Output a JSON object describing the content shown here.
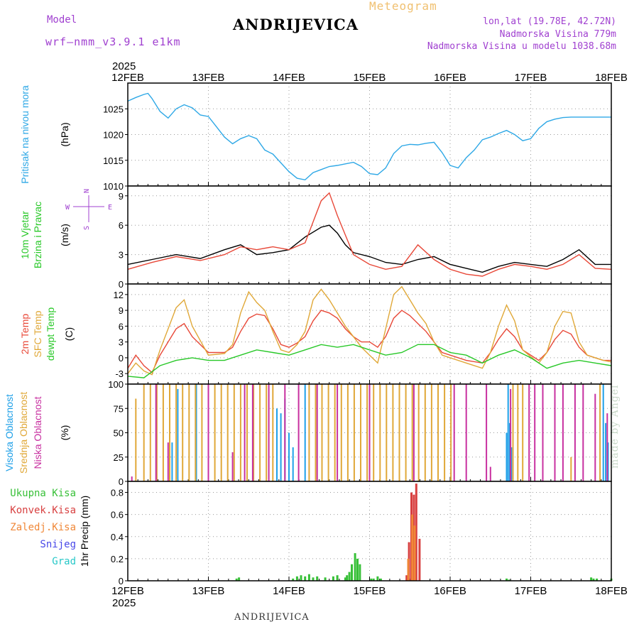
{
  "header": {
    "model_label": "Model",
    "model_version": "wrf–nmm_v3.9.1  e1km",
    "station": "ANDRIJEVICA",
    "meteogram": "Meteogram",
    "lonlat": "lon,lat (19.78E, 42.72N)",
    "elevation": "Nadmorska Visina 779m",
    "model_elevation": "Nadmorska Visina u modelu 1038.68m"
  },
  "footer": {
    "station": "ANDRIJEVICA",
    "watermark": "made by Angel"
  },
  "time_axis": {
    "year": "2025",
    "ticks": [
      "12FEB",
      "13FEB",
      "14FEB",
      "15FEB",
      "16FEB",
      "17FEB",
      "18FEB"
    ]
  },
  "colors": {
    "pressure": "#2ea8e6",
    "temp_2m": "#e84838",
    "temp_sfc": "#e0a838",
    "dewpoint": "#28c828",
    "cloud_high": "#1ea0e8",
    "cloud_mid": "#e0a838",
    "cloud_low": "#c830a0",
    "precip_total": "#38c038",
    "precip_conv": "#d84040",
    "precip_frozen": "#f08838",
    "snow": "#4848e8",
    "graupel": "#28c8c8",
    "label_purple": "#a040d0"
  },
  "chart_data": [
    {
      "type": "line",
      "panel": "pressure",
      "ylabel_left": "Pritisak na nivou mora",
      "ylabel_unit": "(hPa)",
      "yticks": [
        1010,
        1015,
        1020,
        1025
      ],
      "ylim": [
        1010,
        1030
      ],
      "series": [
        {
          "color": "#2ea8e6",
          "x": [
            0,
            0.1,
            0.2,
            0.25,
            0.3,
            0.4,
            0.5,
            0.6,
            0.7,
            0.8,
            0.9,
            1.0,
            1.1,
            1.2,
            1.3,
            1.4,
            1.5,
            1.6,
            1.7,
            1.8,
            1.9,
            2.0,
            2.1,
            2.2,
            2.3,
            2.4,
            2.5,
            2.6,
            2.7,
            2.8,
            2.9,
            3.0,
            3.1,
            3.2,
            3.3,
            3.4,
            3.5,
            3.6,
            3.7,
            3.8,
            3.9,
            4.0,
            4.1,
            4.2,
            4.3,
            4.4,
            4.5,
            4.6,
            4.7,
            4.8,
            4.9,
            5.0,
            5.1,
            5.2,
            5.3,
            5.4,
            5.5,
            5.6,
            5.7,
            5.8,
            5.9,
            6.0
          ],
          "y": [
            1026.5,
            1027.2,
            1027.8,
            1028.0,
            1027.0,
            1024.5,
            1023.2,
            1025.0,
            1025.8,
            1025.2,
            1023.8,
            1023.5,
            1021.5,
            1019.5,
            1018.2,
            1019.2,
            1019.8,
            1019.2,
            1017.0,
            1016.2,
            1014.5,
            1012.8,
            1011.5,
            1011.2,
            1012.6,
            1013.2,
            1013.8,
            1014.0,
            1014.3,
            1014.6,
            1013.8,
            1012.4,
            1012.2,
            1013.5,
            1016.3,
            1017.8,
            1018.1,
            1018.0,
            1018.3,
            1018.5,
            1016.5,
            1014.0,
            1013.5,
            1015.5,
            1017.0,
            1019.0,
            1019.5,
            1020.2,
            1020.8,
            1020.0,
            1018.8,
            1019.2,
            1021.2,
            1022.5,
            1023.0,
            1023.3,
            1023.4,
            1023.4,
            1023.4,
            1023.4,
            1023.4,
            1023.4
          ]
        }
      ]
    },
    {
      "type": "line",
      "panel": "wind",
      "ylabel_left": "10m Vjetar",
      "ylabel_left2": "Brzina i Pravac",
      "ylabel_unit": "(m/s)",
      "compass": [
        "N",
        "W",
        "E",
        "S"
      ],
      "yticks": [
        0,
        3,
        6,
        9
      ],
      "ylim": [
        0,
        10
      ],
      "series": [
        {
          "color": "#000000",
          "x": [
            0,
            0.3,
            0.6,
            0.9,
            1.2,
            1.4,
            1.6,
            1.8,
            2.0,
            2.2,
            2.4,
            2.5,
            2.6,
            2.7,
            2.8,
            3.0,
            3.2,
            3.4,
            3.6,
            3.8,
            4.0,
            4.2,
            4.4,
            4.6,
            4.8,
            5.0,
            5.2,
            5.4,
            5.6,
            5.8,
            6.0
          ],
          "y": [
            2.0,
            2.5,
            3.0,
            2.6,
            3.5,
            4.0,
            3.0,
            3.2,
            3.5,
            4.8,
            5.8,
            6.0,
            5.2,
            4.0,
            3.2,
            2.8,
            2.2,
            2.0,
            2.5,
            2.8,
            2.0,
            1.6,
            1.2,
            1.8,
            2.2,
            2.0,
            1.8,
            2.5,
            3.5,
            2.0,
            2.0
          ]
        },
        {
          "color": "#e84838",
          "x": [
            0,
            0.3,
            0.6,
            0.9,
            1.2,
            1.4,
            1.6,
            1.8,
            2.0,
            2.2,
            2.4,
            2.5,
            2.6,
            2.7,
            2.8,
            3.0,
            3.2,
            3.4,
            3.6,
            3.8,
            4.0,
            4.2,
            4.4,
            4.6,
            4.8,
            5.0,
            5.2,
            5.4,
            5.6,
            5.8,
            6.0
          ],
          "y": [
            1.5,
            2.2,
            2.8,
            2.4,
            3.0,
            3.8,
            3.5,
            3.8,
            3.5,
            4.2,
            8.5,
            9.3,
            7.0,
            5.0,
            3.0,
            2.0,
            1.5,
            1.8,
            4.0,
            2.5,
            1.5,
            1.0,
            0.8,
            1.5,
            2.0,
            1.8,
            1.5,
            2.0,
            3.0,
            1.6,
            1.5
          ]
        }
      ]
    },
    {
      "type": "line",
      "panel": "temperature",
      "ylabel_left": "2m Temp",
      "ylabel_left2": "SFC Temp",
      "ylabel_left3": "dewpt Temp",
      "ylabel_unit": "(C)",
      "yticks": [
        -3,
        0,
        3,
        6,
        9,
        12
      ],
      "ylim": [
        -5,
        14
      ],
      "series": [
        {
          "name": "2m Temp",
          "color": "#e84838",
          "x": [
            0,
            0.1,
            0.2,
            0.3,
            0.4,
            0.5,
            0.6,
            0.7,
            0.8,
            1.0,
            1.2,
            1.3,
            1.4,
            1.5,
            1.6,
            1.7,
            1.8,
            1.9,
            2.0,
            2.1,
            2.2,
            2.3,
            2.4,
            2.5,
            2.6,
            2.7,
            2.8,
            2.9,
            3.0,
            3.1,
            3.2,
            3.3,
            3.4,
            3.5,
            3.6,
            3.7,
            3.8,
            3.9,
            4.0,
            4.2,
            4.4,
            4.5,
            4.6,
            4.7,
            4.8,
            4.9,
            5.0,
            5.1,
            5.2,
            5.3,
            5.4,
            5.5,
            5.6,
            5.7,
            5.8,
            5.9,
            6.0
          ],
          "y": [
            -2.0,
            0.5,
            -1.5,
            -2.8,
            0.5,
            3.0,
            5.5,
            6.5,
            4.0,
            1.0,
            1.0,
            2.0,
            5.0,
            7.5,
            8.3,
            8.0,
            5.5,
            2.5,
            2.0,
            2.8,
            4.0,
            7.0,
            9.0,
            8.5,
            7.5,
            5.5,
            4.0,
            3.0,
            3.0,
            2.0,
            4.0,
            7.5,
            9.0,
            8.0,
            6.5,
            5.0,
            3.0,
            1.0,
            0.5,
            -0.5,
            -1.0,
            1.0,
            3.5,
            5.5,
            4.0,
            1.5,
            0.5,
            -0.5,
            1.0,
            3.5,
            5.2,
            4.5,
            2.0,
            0.5,
            0.0,
            -0.5,
            -0.5
          ]
        },
        {
          "name": "SFC Temp",
          "color": "#e0a838",
          "x": [
            0,
            0.1,
            0.2,
            0.3,
            0.4,
            0.5,
            0.6,
            0.7,
            0.8,
            1.0,
            1.2,
            1.3,
            1.4,
            1.5,
            1.6,
            1.7,
            1.8,
            1.9,
            2.0,
            2.1,
            2.2,
            2.3,
            2.4,
            2.5,
            2.6,
            2.7,
            2.8,
            2.9,
            3.0,
            3.1,
            3.2,
            3.3,
            3.4,
            3.5,
            3.6,
            3.7,
            3.8,
            3.9,
            4.0,
            4.2,
            4.4,
            4.5,
            4.6,
            4.7,
            4.8,
            4.9,
            5.0,
            5.1,
            5.2,
            5.3,
            5.4,
            5.5,
            5.6,
            5.7,
            5.8,
            5.9,
            6.0
          ],
          "y": [
            -3.0,
            -1.0,
            -2.5,
            -3.2,
            1.5,
            5.5,
            9.5,
            11.0,
            6.0,
            0.5,
            0.8,
            2.5,
            8.5,
            12.5,
            10.5,
            9.0,
            5.0,
            1.5,
            1.0,
            2.5,
            5.0,
            11.0,
            13.0,
            11.0,
            8.5,
            6.0,
            4.0,
            2.0,
            0.5,
            -1.0,
            5.5,
            12.0,
            13.5,
            11.0,
            8.5,
            6.5,
            3.0,
            0.5,
            0.0,
            -1.0,
            -2.0,
            1.0,
            6.0,
            10.0,
            7.0,
            1.5,
            0.2,
            -1.0,
            1.0,
            6.0,
            8.8,
            8.5,
            3.0,
            0.5,
            0.0,
            -0.5,
            -0.8
          ]
        },
        {
          "name": "dewpt Temp",
          "color": "#28c828",
          "x": [
            0,
            0.2,
            0.4,
            0.6,
            0.8,
            1.0,
            1.2,
            1.4,
            1.6,
            1.8,
            2.0,
            2.2,
            2.4,
            2.6,
            2.8,
            3.0,
            3.2,
            3.4,
            3.6,
            3.8,
            4.0,
            4.2,
            4.4,
            4.6,
            4.8,
            5.0,
            5.2,
            5.4,
            5.6,
            5.8,
            6.0
          ],
          "y": [
            -3.5,
            -3.8,
            -1.5,
            -0.5,
            0.0,
            -0.5,
            -0.5,
            0.5,
            1.5,
            1.0,
            0.5,
            1.5,
            2.5,
            2.0,
            2.5,
            1.5,
            0.5,
            1.0,
            2.5,
            2.5,
            1.0,
            0.5,
            -1.0,
            0.5,
            1.5,
            0.0,
            -2.0,
            -1.0,
            -0.5,
            -1.0,
            -1.5
          ]
        }
      ]
    },
    {
      "type": "bar",
      "panel": "clouds",
      "ylabel_left": "Visoka Oblacnost",
      "ylabel_left2": "Srednja Oblacnost",
      "ylabel_left3": "Niska Oblacnost",
      "ylabel_unit": "(%)",
      "yticks": [
        0,
        25,
        50,
        75,
        100
      ],
      "ylim": [
        0,
        100
      ],
      "series": [
        {
          "name": "Visoka Oblacnost",
          "color": "#1ea0e8",
          "x": [
            0.55,
            0.62,
            0.85,
            1.85,
            1.9,
            1.95,
            2.0,
            2.05,
            2.2,
            4.7,
            4.72,
            4.74,
            4.76,
            5.9,
            5.93,
            5.96
          ],
          "values": [
            40,
            95,
            100,
            75,
            70,
            85,
            50,
            35,
            100,
            50,
            100,
            60,
            35,
            100,
            60,
            40
          ]
        },
        {
          "name": "Srednja Oblacnost",
          "color": "#e0a838",
          "x": [
            0.1,
            0.2,
            0.28,
            0.36,
            0.44,
            0.52,
            0.6,
            0.68,
            0.76,
            0.84,
            0.92,
            1.0,
            1.08,
            1.16,
            1.24,
            1.32,
            1.4,
            1.48,
            1.56,
            1.64,
            1.72,
            1.8,
            2.25,
            2.33,
            2.41,
            2.49,
            2.57,
            2.65,
            2.73,
            2.81,
            2.89,
            2.97,
            3.05,
            3.13,
            3.21,
            3.29,
            3.37,
            3.45,
            3.53,
            3.61,
            3.69,
            3.77,
            3.85,
            3.93,
            4.01,
            4.78,
            4.84,
            4.9,
            5.5,
            5.86
          ],
          "values": [
            85,
            100,
            100,
            100,
            100,
            100,
            100,
            100,
            100,
            100,
            100,
            100,
            100,
            100,
            100,
            100,
            100,
            100,
            100,
            100,
            100,
            100,
            100,
            100,
            100,
            100,
            100,
            100,
            100,
            100,
            100,
            100,
            100,
            100,
            100,
            100,
            100,
            100,
            100,
            100,
            100,
            100,
            100,
            100,
            100,
            100,
            100,
            100,
            25,
            100
          ]
        },
        {
          "name": "Niska Oblacnost",
          "color": "#c830a0",
          "x": [
            0.05,
            0.35,
            0.5,
            1.0,
            1.3,
            1.45,
            1.55,
            1.75,
            1.95,
            2.12,
            2.35,
            2.6,
            3.0,
            3.55,
            4.05,
            4.2,
            4.45,
            4.5,
            4.75,
            4.98,
            5.05,
            5.15,
            5.3,
            5.4,
            5.55,
            5.65,
            5.8,
            5.95
          ],
          "values": [
            5,
            100,
            40,
            100,
            30,
            100,
            100,
            100,
            100,
            100,
            100,
            100,
            100,
            100,
            100,
            100,
            100,
            15,
            95,
            100,
            100,
            100,
            100,
            100,
            100,
            100,
            90,
            70
          ]
        }
      ]
    },
    {
      "type": "bar",
      "panel": "precipitation",
      "legend": [
        "Ukupna Kisa",
        "Konvek.Kisa",
        "Zaledj.Kisa",
        "Snijeg",
        "Grad"
      ],
      "ylabel_unit": "1hr Precip (mm)",
      "yticks": [
        0,
        0.2,
        0.4,
        0.6,
        0.8
      ],
      "ylim": [
        0,
        0.9
      ],
      "series": [
        {
          "name": "Ukupna Kisa",
          "color": "#38c038",
          "x": [
            1.35,
            1.38,
            2.05,
            2.1,
            2.15,
            2.2,
            2.25,
            2.3,
            2.35,
            2.45,
            2.55,
            2.6,
            2.7,
            2.72,
            2.75,
            2.78,
            2.82,
            2.85,
            2.88,
            3.02,
            3.05,
            3.1,
            3.14,
            4.7,
            4.73,
            5.75,
            5.78,
            5.82,
            6.0
          ],
          "values": [
            0.02,
            0.03,
            0.02,
            0.04,
            0.05,
            0.04,
            0.06,
            0.03,
            0.04,
            0.03,
            0.04,
            0.05,
            0.03,
            0.05,
            0.08,
            0.15,
            0.25,
            0.2,
            0.15,
            0.02,
            0.02,
            0.04,
            0.02,
            0.02,
            0.01,
            0.03,
            0.02,
            0.02,
            0.02
          ]
        },
        {
          "name": "Konvek.Kisa",
          "color": "#d84040",
          "x": [
            3.46,
            3.49,
            3.52,
            3.55,
            3.58,
            3.62
          ],
          "values": [
            0.05,
            0.35,
            0.8,
            0.78,
            0.88,
            0.38
          ]
        },
        {
          "name": "Zaledj.Kisa",
          "color": "#f08838",
          "x": [
            3.48,
            3.53,
            3.56
          ],
          "values": [
            0.2,
            0.6,
            0.5
          ]
        }
      ]
    }
  ]
}
